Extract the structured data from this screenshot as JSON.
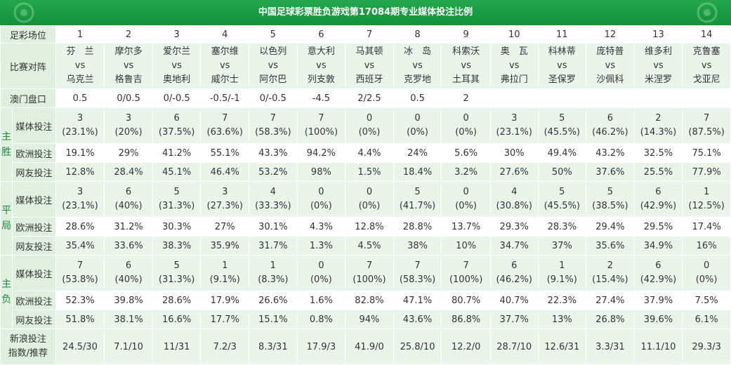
{
  "title": "中国足球彩票胜负游戏第17084期专业媒体投注比例",
  "labels": {
    "match_no": "足彩场位",
    "fixture": "比赛对阵",
    "macau": "澳门盘口",
    "media": "媒体投注",
    "europe": "欧洲投注",
    "netizen": "网友投注",
    "sina_1": "新浪投注",
    "sina_2": "指数/推荐",
    "vs": "vs"
  },
  "sections": {
    "home": [
      "主",
      "胜"
    ],
    "draw": [
      "平",
      "局"
    ],
    "away": [
      "主",
      "负"
    ]
  },
  "matches": [
    {
      "no": "1",
      "home": "芬　兰",
      "away": "乌克兰",
      "macau": "0.5",
      "win": {
        "media": "3",
        "media_pct": "(23.1%)",
        "europe": "19.1%",
        "net": "12.8%"
      },
      "draw": {
        "media": "3",
        "media_pct": "(23.1%)",
        "europe": "28.6%",
        "net": "35.4%"
      },
      "loss": {
        "media": "7",
        "media_pct": "(53.8%)",
        "europe": "52.3%",
        "net": "51.8%"
      },
      "sina": "24.5/30"
    },
    {
      "no": "2",
      "home": "摩尔多",
      "away": "格鲁吉",
      "macau": "0/0.5",
      "win": {
        "media": "3",
        "media_pct": "(20%)",
        "europe": "29%",
        "net": "28.4%"
      },
      "draw": {
        "media": "6",
        "media_pct": "(40%)",
        "europe": "31.2%",
        "net": "33.6%"
      },
      "loss": {
        "media": "6",
        "media_pct": "(40%)",
        "europe": "39.8%",
        "net": "38.1%"
      },
      "sina": "7.1/10"
    },
    {
      "no": "3",
      "home": "爱尔兰",
      "away": "奥地利",
      "macau": "0/-0.5",
      "win": {
        "media": "6",
        "media_pct": "(37.5%)",
        "europe": "41.2%",
        "net": "45.1%"
      },
      "draw": {
        "media": "5",
        "media_pct": "(31.3%)",
        "europe": "30.3%",
        "net": "38.3%"
      },
      "loss": {
        "media": "5",
        "media_pct": "(31.3%)",
        "europe": "28.6%",
        "net": "16.6%"
      },
      "sina": "11/31"
    },
    {
      "no": "4",
      "home": "塞尔维",
      "away": "威尔士",
      "macau": "-0.5/-1",
      "win": {
        "media": "7",
        "media_pct": "(63.6%)",
        "europe": "55.1%",
        "net": "46.4%"
      },
      "draw": {
        "media": "3",
        "media_pct": "(27.3%)",
        "europe": "27%",
        "net": "35.9%"
      },
      "loss": {
        "media": "1",
        "media_pct": "(9.1%)",
        "europe": "17.9%",
        "net": "17.7%"
      },
      "sina": "7.2/3"
    },
    {
      "no": "5",
      "home": "以色列",
      "away": "阿尔巴",
      "macau": "0/-0.5",
      "win": {
        "media": "7",
        "media_pct": "(58.3%)",
        "europe": "43.3%",
        "net": "53.2%"
      },
      "draw": {
        "media": "4",
        "media_pct": "(33.3%)",
        "europe": "30.1%",
        "net": "31.7%"
      },
      "loss": {
        "media": "1",
        "media_pct": "(8.3%)",
        "europe": "26.6%",
        "net": "15.1%"
      },
      "sina": "8.3/31"
    },
    {
      "no": "6",
      "home": "意大利",
      "away": "列支敦",
      "macau": "-4.5",
      "win": {
        "media": "7",
        "media_pct": "(100%)",
        "europe": "94.2%",
        "net": "98%"
      },
      "draw": {
        "media": "0",
        "media_pct": "(0%)",
        "europe": "4.3%",
        "net": "1.3%"
      },
      "loss": {
        "media": "0",
        "media_pct": "(0%)",
        "europe": "1.6%",
        "net": "0.8%"
      },
      "sina": "17.9/3"
    },
    {
      "no": "7",
      "home": "马其顿",
      "away": "西班牙",
      "macau": "2/2.5",
      "win": {
        "media": "0",
        "media_pct": "(0%)",
        "europe": "4.4%",
        "net": "1.5%"
      },
      "draw": {
        "media": "0",
        "media_pct": "(0%)",
        "europe": "12.8%",
        "net": "4.5%"
      },
      "loss": {
        "media": "7",
        "media_pct": "(100%)",
        "europe": "82.8%",
        "net": "94%"
      },
      "sina": "41.9/0"
    },
    {
      "no": "8",
      "home": "冰　岛",
      "away": "克罗地",
      "macau": "0.5",
      "win": {
        "media": "0",
        "media_pct": "(0%)",
        "europe": "24%",
        "net": "18.4%"
      },
      "draw": {
        "media": "5",
        "media_pct": "(41.7%)",
        "europe": "28.8%",
        "net": "38%"
      },
      "loss": {
        "media": "7",
        "media_pct": "(58.3%)",
        "europe": "47.1%",
        "net": "43.6%"
      },
      "sina": "25.8/10"
    },
    {
      "no": "9",
      "home": "科索沃",
      "away": "土耳其",
      "macau": "2",
      "win": {
        "media": "0",
        "media_pct": "(0%)",
        "europe": "5.6%",
        "net": "3.2%"
      },
      "draw": {
        "media": "0",
        "media_pct": "(0%)",
        "europe": "13.7%",
        "net": "10%"
      },
      "loss": {
        "media": "7",
        "media_pct": "(100%)",
        "europe": "80.7%",
        "net": "86.8%"
      },
      "sina": "12.2/0"
    },
    {
      "no": "10",
      "home": "奥　瓦",
      "away": "弗拉门",
      "macau": "",
      "win": {
        "media": "3",
        "media_pct": "(23.1%)",
        "europe": "30%",
        "net": "27.6%"
      },
      "draw": {
        "media": "4",
        "media_pct": "(30.8%)",
        "europe": "29.3%",
        "net": "34.7%"
      },
      "loss": {
        "media": "6",
        "media_pct": "(46.2%)",
        "europe": "40.7%",
        "net": "37.7%"
      },
      "sina": "28.7/10"
    },
    {
      "no": "11",
      "home": "科林蒂",
      "away": "圣保罗",
      "macau": "",
      "win": {
        "media": "5",
        "media_pct": "(45.5%)",
        "europe": "49.4%",
        "net": "50%"
      },
      "draw": {
        "media": "5",
        "media_pct": "(45.5%)",
        "europe": "28.3%",
        "net": "37%"
      },
      "loss": {
        "media": "1",
        "media_pct": "(9.1%)",
        "europe": "22.3%",
        "net": "13%"
      },
      "sina": "12.6/31"
    },
    {
      "no": "12",
      "home": "庞特普",
      "away": "沙佩科",
      "macau": "",
      "win": {
        "media": "6",
        "media_pct": "(46.2%)",
        "europe": "43.2%",
        "net": "37.6%"
      },
      "draw": {
        "media": "5",
        "media_pct": "(38.5%)",
        "europe": "29.4%",
        "net": "35.6%"
      },
      "loss": {
        "media": "2",
        "media_pct": "(15.4%)",
        "europe": "27.4%",
        "net": "26.8%"
      },
      "sina": "3.3/31"
    },
    {
      "no": "13",
      "home": "维多利",
      "away": "米涅罗",
      "macau": "",
      "win": {
        "media": "2",
        "media_pct": "(14.3%)",
        "europe": "32.5%",
        "net": "25.5%"
      },
      "draw": {
        "media": "6",
        "media_pct": "(42.9%)",
        "europe": "29.5%",
        "net": "34.9%"
      },
      "loss": {
        "media": "6",
        "media_pct": "(42.9%)",
        "europe": "37.9%",
        "net": "39.6%"
      },
      "sina": "11.1/10"
    },
    {
      "no": "14",
      "home": "克鲁塞",
      "away": "戈亚尼",
      "macau": "",
      "win": {
        "media": "7",
        "media_pct": "(87.5%)",
        "europe": "75.1%",
        "net": "77.9%"
      },
      "draw": {
        "media": "1",
        "media_pct": "(12.5%)",
        "europe": "17.4%",
        "net": "16%"
      },
      "loss": {
        "media": "0",
        "media_pct": "(0%)",
        "europe": "7.5%",
        "net": "6.1%"
      },
      "sina": "29.3/3"
    }
  ]
}
